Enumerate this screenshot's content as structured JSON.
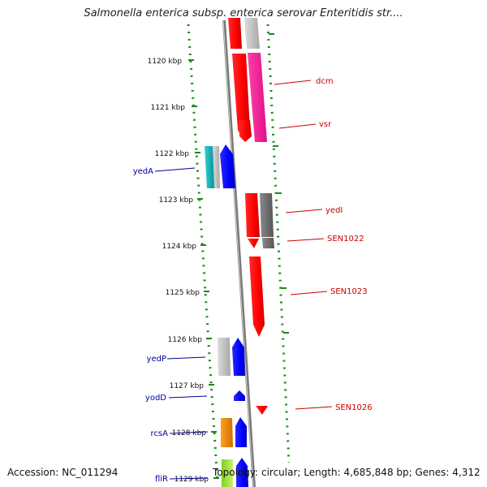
{
  "header": {
    "title": "Salmonella enterica subsp. enterica serovar Enteritidis str...."
  },
  "footer": {
    "accession": "Accession: NC_011294",
    "topology": "Topology: circular; Length: 4,685,848 bp; Genes: 4,312"
  },
  "scale_ticks": [
    {
      "label": "1120 kbp"
    },
    {
      "label": "1121 kbp"
    },
    {
      "label": "1122 kbp"
    },
    {
      "label": "1123 kbp"
    },
    {
      "label": "1124 kbp"
    },
    {
      "label": "1125 kbp"
    },
    {
      "label": "1126 kbp"
    },
    {
      "label": "1127 kbp"
    },
    {
      "label": "1128 kbp"
    },
    {
      "label": "1129 kbp"
    }
  ],
  "gene_labels": {
    "dcm": "dcm",
    "vsr": "vsr",
    "yedA": "yedA",
    "yedI": "yedI",
    "SEN1022": "SEN1022",
    "SEN1023": "SEN1023",
    "yedP": "yedP",
    "yodD": "yodD",
    "SEN1026": "SEN1026",
    "rcsA": "rcsA",
    "fliR": "fliR"
  },
  "colors": {
    "forward_strand": "#ff0000",
    "reverse_strand": "#0000ff",
    "forward_label": "#cc0000",
    "reverse_label": "#000099",
    "ruler_dots": "#1a8a1a",
    "backbone": "#888888"
  }
}
